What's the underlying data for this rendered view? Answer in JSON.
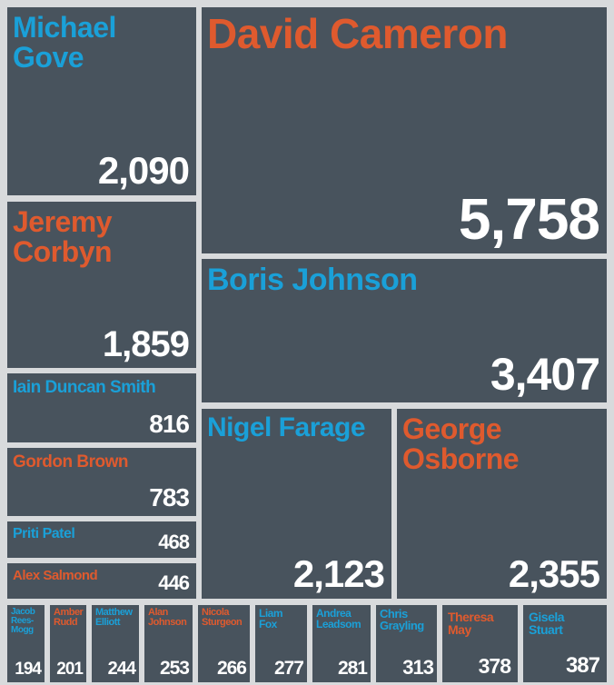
{
  "chart_data": {
    "type": "treemap",
    "title": "",
    "colors": {
      "blue_party": "#1aa0d8",
      "red_party": "#df5a2e",
      "tile": "#48535d",
      "value": "#ffffff",
      "background": "#d8dadc"
    },
    "items": [
      {
        "id": "cameron",
        "name": "David Cameron",
        "value": 5758,
        "value_label": "5,758",
        "color": "#df5a2e"
      },
      {
        "id": "johnson",
        "name": "Boris Johnson",
        "value": 3407,
        "value_label": "3,407",
        "color": "#1aa0d8"
      },
      {
        "id": "osborne",
        "name": "George\nOsborne",
        "value": 2355,
        "value_label": "2,355",
        "color": "#df5a2e"
      },
      {
        "id": "farage",
        "name": "Nigel Farage",
        "value": 2123,
        "value_label": "2,123",
        "color": "#1aa0d8"
      },
      {
        "id": "gove",
        "name": "Michael\nGove",
        "value": 2090,
        "value_label": "2,090",
        "color": "#1aa0d8"
      },
      {
        "id": "corbyn",
        "name": "Jeremy\nCorbyn",
        "value": 1859,
        "value_label": "1,859",
        "color": "#df5a2e"
      },
      {
        "id": "ids",
        "name": "Iain Duncan Smith",
        "value": 816,
        "value_label": "816",
        "color": "#1aa0d8"
      },
      {
        "id": "brown",
        "name": "Gordon Brown",
        "value": 783,
        "value_label": "783",
        "color": "#df5a2e"
      },
      {
        "id": "patel",
        "name": "Priti Patel",
        "value": 468,
        "value_label": "468",
        "color": "#1aa0d8"
      },
      {
        "id": "salmond",
        "name": "Alex Salmond",
        "value": 446,
        "value_label": "446",
        "color": "#df5a2e"
      },
      {
        "id": "stuart",
        "name": "Gisela\nStuart",
        "value": 387,
        "value_label": "387",
        "color": "#1aa0d8"
      },
      {
        "id": "may",
        "name": "Theresa\nMay",
        "value": 378,
        "value_label": "378",
        "color": "#df5a2e"
      },
      {
        "id": "grayling",
        "name": "Chris\nGrayling",
        "value": 313,
        "value_label": "313",
        "color": "#1aa0d8"
      },
      {
        "id": "leadsom",
        "name": "Andrea\nLeadsom",
        "value": 281,
        "value_label": "281",
        "color": "#1aa0d8"
      },
      {
        "id": "fox",
        "name": "Liam\nFox",
        "value": 277,
        "value_label": "277",
        "color": "#1aa0d8"
      },
      {
        "id": "sturgeon",
        "name": "Nicola\nSturgeon",
        "value": 266,
        "value_label": "266",
        "color": "#df5a2e"
      },
      {
        "id": "ajohnson",
        "name": "Alan\nJohnson",
        "value": 253,
        "value_label": "253",
        "color": "#df5a2e"
      },
      {
        "id": "elliott",
        "name": "Matthew\nElliott",
        "value": 244,
        "value_label": "244",
        "color": "#1aa0d8"
      },
      {
        "id": "rudd",
        "name": "Amber\nRudd",
        "value": 201,
        "value_label": "201",
        "color": "#df5a2e"
      },
      {
        "id": "reesmogg",
        "name": "Jacob\nRees-\nMogg",
        "value": 194,
        "value_label": "194",
        "color": "#1aa0d8"
      }
    ]
  }
}
